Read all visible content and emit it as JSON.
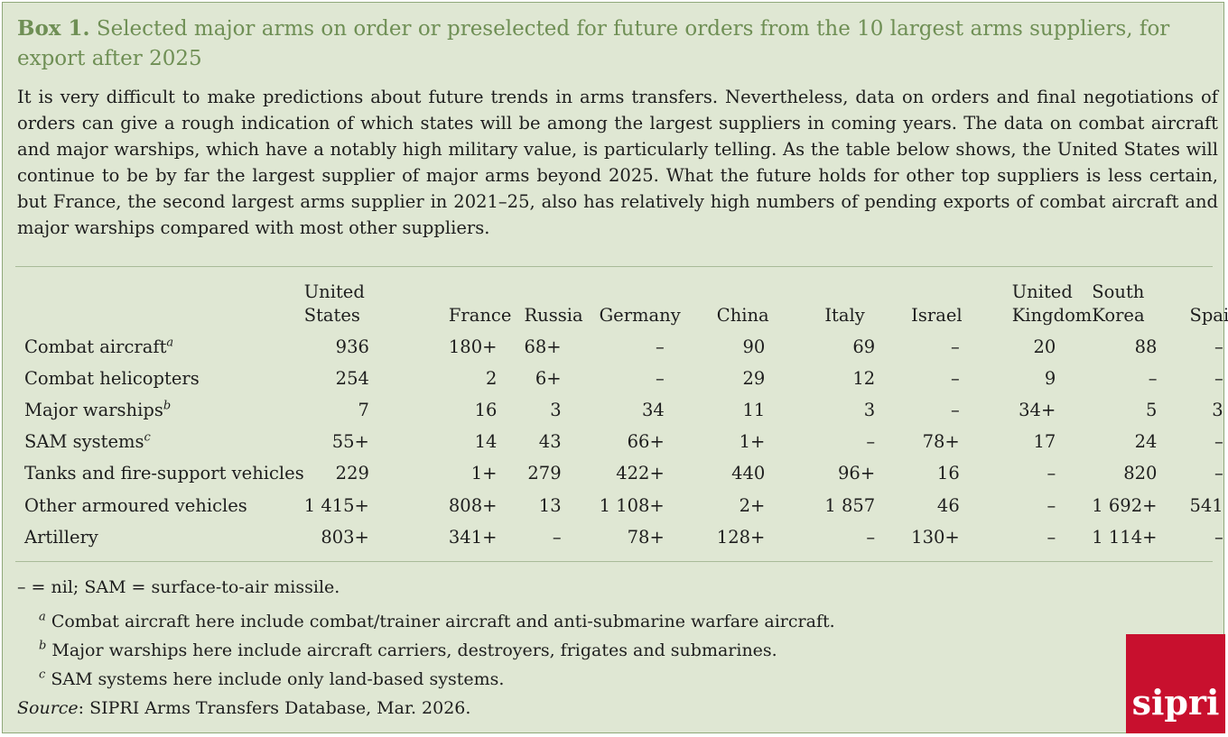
{
  "title": {
    "lead": "Box 1.",
    "text": "Selected major arms on order or preselected for future orders from the 10 largest arms suppliers, for export after 2025"
  },
  "intro": "It is very difficult to make predictions about future trends in arms transfers. Nevertheless, data on orders and final negotiations of orders can give a rough indication of which states will be among the largest suppliers in coming years. The data on combat aircraft and major warships, which have a notably high military value, is particularly telling. As the table below shows, the United States will continue to be by far the largest supplier of major arms beyond 2025. What the future holds for other top suppliers is less certain, but France, the second largest arms supplier in 2021–25, also has relatively high numbers of pending exports of combat aircraft and major warships compared with most other suppliers.",
  "table": {
    "columns": [
      {
        "l1": "United",
        "l2": "States"
      },
      {
        "l1": "",
        "l2": "France"
      },
      {
        "l1": "",
        "l2": "Russia"
      },
      {
        "l1": "",
        "l2": "Germany"
      },
      {
        "l1": "",
        "l2": "China"
      },
      {
        "l1": "",
        "l2": "Italy"
      },
      {
        "l1": "",
        "l2": "Israel"
      },
      {
        "l1": "United",
        "l2": "Kingdom"
      },
      {
        "l1": "South",
        "l2": "Korea"
      },
      {
        "l1": "",
        "l2": "Spain"
      }
    ],
    "rows": [
      {
        "label": "Combat aircraft",
        "note": "a",
        "values": [
          "936",
          "180+",
          "68+",
          "–",
          "90",
          "69",
          "–",
          "20",
          "88",
          "–"
        ]
      },
      {
        "label": "Combat helicopters",
        "note": "",
        "values": [
          "254",
          "2",
          "6+",
          "–",
          "29",
          "12",
          "–",
          "9",
          "–",
          "–"
        ]
      },
      {
        "label": "Major warships",
        "note": "b",
        "values": [
          "7",
          "16",
          "3",
          "34",
          "11",
          "3",
          "–",
          "34+",
          "5",
          "3"
        ]
      },
      {
        "label": "SAM systems",
        "note": "c",
        "values": [
          "55+",
          "14",
          "43",
          "66+",
          "1+",
          "–",
          "78+",
          "17",
          "24",
          "–"
        ]
      },
      {
        "label": "Tanks and fire-support vehicles",
        "note": "",
        "values": [
          "229",
          "1+",
          "279",
          "422+",
          "440",
          "96+",
          "16",
          "–",
          "820",
          "–"
        ]
      },
      {
        "label": "Other armoured vehicles",
        "note": "",
        "values": [
          "1 415+",
          "808+",
          "13",
          "1 108+",
          "2+",
          "1 857",
          "46",
          "–",
          "1 692+",
          "541"
        ]
      },
      {
        "label": "Artillery",
        "note": "",
        "values": [
          "803+",
          "341+",
          "–",
          "78+",
          "128+",
          "–",
          "130+",
          "–",
          "1 114+",
          "–"
        ]
      }
    ]
  },
  "notes": {
    "abbrev": "– = nil; SAM = surface-to-air missile.",
    "footnotes": [
      {
        "mark": "a",
        "text": "Combat aircraft here include combat/trainer aircraft and anti-submarine warfare aircraft."
      },
      {
        "mark": "b",
        "text": "Major warships here include aircraft carriers, destroyers, frigates and submarines."
      },
      {
        "mark": "c",
        "text": "SAM systems here include only land-based systems."
      }
    ],
    "source_label": "Source",
    "source_text": ": SIPRI Arms Transfers Database, Mar. 2026."
  },
  "logo": {
    "text": "sipri",
    "color": "#c8102e"
  },
  "colors": {
    "background": "#dfe7d3",
    "title": "#6f8f55",
    "border": "#8fa87a"
  }
}
